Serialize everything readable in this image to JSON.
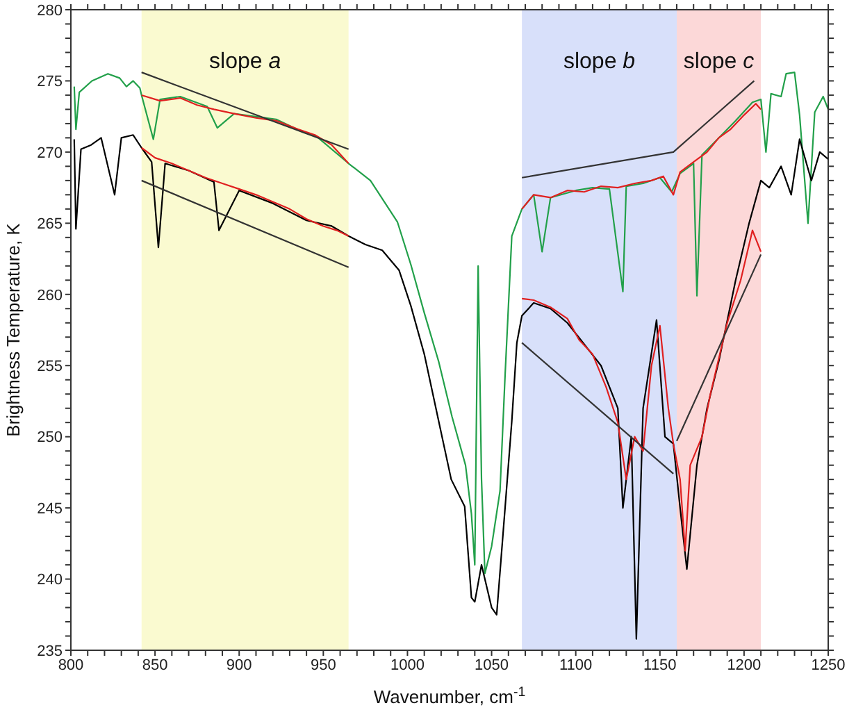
{
  "chart_data": {
    "type": "line",
    "xlabel": "Wavenumber, cm$^{-1}$",
    "ylabel": "Brightness Temperature, K",
    "xlim": [
      800,
      1250
    ],
    "ylim": [
      235,
      280
    ],
    "xticks": [
      800,
      {
        "value": 810,
        "label": null
      },
      {
        "value": 820,
        "label": null
      },
      {
        "value": 830,
        "label": null
      },
      {
        "value": 840,
        "label": null
      },
      850,
      {
        "value": 860,
        "label": null
      },
      {
        "value": 870,
        "label": null
      },
      {
        "value": 880,
        "label": null
      },
      {
        "value": 890,
        "label": null
      },
      900,
      {
        "value": 910,
        "label": null
      },
      {
        "value": 920,
        "label": null
      },
      {
        "value": 930,
        "label": null
      },
      {
        "value": 940,
        "label": null
      },
      950,
      {
        "value": 960,
        "label": null
      },
      {
        "value": 970,
        "label": null
      },
      {
        "value": 980,
        "label": null
      },
      {
        "value": 990,
        "label": null
      },
      1000,
      {
        "value": 1010,
        "label": null
      },
      {
        "value": 1020,
        "label": null
      },
      {
        "value": 1030,
        "label": null
      },
      {
        "value": 1040,
        "label": null
      },
      1050,
      {
        "value": 1060,
        "label": null
      },
      {
        "value": 1070,
        "label": null
      },
      {
        "value": 1080,
        "label": null
      },
      {
        "value": 1090,
        "label": null
      },
      1100,
      {
        "value": 1110,
        "label": null
      },
      {
        "value": 1120,
        "label": null
      },
      {
        "value": 1130,
        "label": null
      },
      {
        "value": 1140,
        "label": null
      },
      1150,
      {
        "value": 1160,
        "label": null
      },
      {
        "value": 1170,
        "label": null
      },
      {
        "value": 1180,
        "label": null
      },
      {
        "value": 1190,
        "label": null
      },
      1200,
      {
        "value": 1210,
        "label": null
      },
      {
        "value": 1220,
        "label": null
      },
      {
        "value": 1230,
        "label": null
      },
      {
        "value": 1240,
        "label": null
      },
      1250
    ],
    "yticks": [
      235,
      {
        "value": 236,
        "label": null
      },
      {
        "value": 237,
        "label": null
      },
      {
        "value": 238,
        "label": null
      },
      {
        "value": 239,
        "label": null
      },
      240,
      {
        "value": 241,
        "label": null
      },
      {
        "value": 242,
        "label": null
      },
      {
        "value": 243,
        "label": null
      },
      {
        "value": 244,
        "label": null
      },
      245,
      {
        "value": 246,
        "label": null
      },
      {
        "value": 247,
        "label": null
      },
      {
        "value": 248,
        "label": null
      },
      {
        "value": 249,
        "label": null
      },
      250,
      {
        "value": 251,
        "label": null
      },
      {
        "value": 252,
        "label": null
      },
      {
        "value": 253,
        "label": null
      },
      {
        "value": 254,
        "label": null
      },
      255,
      {
        "value": 256,
        "label": null
      },
      {
        "value": 257,
        "label": null
      },
      {
        "value": 258,
        "label": null
      },
      {
        "value": 259,
        "label": null
      },
      260,
      {
        "value": 261,
        "label": null
      },
      {
        "value": 262,
        "label": null
      },
      {
        "value": 263,
        "label": null
      },
      {
        "value": 264,
        "label": null
      },
      265,
      {
        "value": 266,
        "label": null
      },
      {
        "value": 267,
        "label": null
      },
      {
        "value": 268,
        "label": null
      },
      {
        "value": 269,
        "label": null
      },
      270,
      {
        "value": 271,
        "label": null
      },
      {
        "value": 272,
        "label": null
      },
      {
        "value": 273,
        "label": null
      },
      {
        "value": 274,
        "label": null
      },
      275,
      {
        "value": 276,
        "label": null
      },
      {
        "value": 277,
        "label": null
      },
      {
        "value": 278,
        "label": null
      },
      {
        "value": 279,
        "label": null
      },
      280
    ],
    "marker": "none",
    "line_style": "solid",
    "bands": [
      {
        "axis": "x",
        "from": 842,
        "to": 965,
        "label": "slope a",
        "color": "#fafad0"
      },
      {
        "axis": "x",
        "from": 1068,
        "to": 1160,
        "label": "slope b",
        "color": "#d8e0fa"
      },
      {
        "axis": "x",
        "from": 1160,
        "to": 1210,
        "label": "slope c",
        "color": "#fcd8d8"
      }
    ],
    "series": [
      {
        "color": "#22a04a",
        "x": [
          802,
          803,
          805,
          812.5,
          822,
          829,
          833,
          837,
          841,
          842,
          849,
          853,
          865,
          881,
          887,
          897,
          922,
          938,
          946,
          965,
          978,
          994,
          1002,
          1010,
          1018.5,
          1026.5,
          1034.5,
          1038,
          1040,
          1042,
          1044,
          1046,
          1050,
          1055,
          1058,
          1062,
          1068,
          1075,
          1080,
          1085,
          1100,
          1110,
          1120,
          1128,
          1130,
          1140,
          1150,
          1157,
          1162,
          1170,
          1172,
          1175,
          1185,
          1195,
          1205,
          1210,
          1213,
          1216,
          1222,
          1225,
          1230,
          1233,
          1238,
          1242,
          1247,
          1250
        ],
        "values": [
          274.6,
          271.6,
          274.2,
          275,
          275.5,
          275.2,
          274.6,
          275,
          274.5,
          274,
          270.9,
          273.7,
          273.9,
          273.2,
          271.7,
          272.7,
          272.3,
          271.4,
          271.1,
          269.2,
          268,
          265.1,
          262.1,
          258.7,
          255.3,
          251.4,
          248,
          244.6,
          241,
          262,
          247,
          240.4,
          242.3,
          246.2,
          254.3,
          264.1,
          266,
          267,
          263,
          266.8,
          267.3,
          267.5,
          267.4,
          260.2,
          267.6,
          267.8,
          268.2,
          267.2,
          268.5,
          269.2,
          259.9,
          269.8,
          271,
          272.2,
          273.5,
          273.7,
          270,
          274.1,
          273.9,
          275.5,
          275.6,
          272.6,
          265,
          272.8,
          273.9,
          273
        ]
      },
      {
        "color": "#000000",
        "x": [
          802,
          803,
          806,
          812,
          818,
          826,
          830,
          837,
          842,
          848,
          852,
          856,
          870,
          885,
          888,
          900,
          920,
          930,
          940,
          955,
          965,
          975,
          985,
          995,
          1002,
          1010,
          1018,
          1026,
          1034,
          1038,
          1040,
          1044,
          1050,
          1053,
          1058,
          1062,
          1065,
          1068,
          1075,
          1085,
          1095,
          1105,
          1115,
          1125,
          1128,
          1133,
          1136,
          1140,
          1148,
          1153,
          1158,
          1162,
          1166,
          1172,
          1178,
          1185,
          1195,
          1203,
          1210,
          1215,
          1222,
          1228,
          1233,
          1240,
          1245,
          1250
        ],
        "values": [
          270.9,
          264.6,
          270.2,
          270.5,
          271,
          267,
          271,
          271.2,
          270.3,
          269.3,
          263.3,
          269.2,
          268.7,
          267.9,
          264.5,
          267.3,
          266.4,
          265.8,
          265.2,
          264.8,
          264.1,
          263.5,
          263.1,
          261.7,
          259.2,
          255.8,
          251.4,
          247,
          245.1,
          238.7,
          238.4,
          241,
          238,
          237.5,
          245,
          251.1,
          256.6,
          258.5,
          259.4,
          259,
          258,
          256.5,
          255,
          252,
          245,
          250,
          235.8,
          252,
          258.2,
          250,
          249.5,
          245,
          240.7,
          248,
          252,
          255.3,
          261,
          265,
          268,
          267.5,
          269,
          267,
          270.9,
          268,
          270,
          269.5
        ]
      },
      {
        "color": "#e02020",
        "x": [
          842,
          853,
          865,
          875,
          885,
          897,
          910,
          922,
          935,
          945,
          955,
          965
        ],
        "values": [
          274,
          273.6,
          273.8,
          273.3,
          273,
          272.7,
          272.4,
          272.2,
          271.6,
          271.2,
          270.5,
          269.2
        ]
      },
      {
        "color": "#e02020",
        "x": [
          1068,
          1075,
          1085,
          1095,
          1105,
          1115,
          1125,
          1135,
          1145,
          1152,
          1158,
          1162,
          1170,
          1178,
          1185,
          1192,
          1200,
          1207,
          1210
        ],
        "values": [
          266,
          267,
          266.8,
          267.3,
          267.2,
          267.6,
          267.5,
          267.8,
          268,
          268.3,
          267,
          268.6,
          269.3,
          270,
          271,
          271.6,
          272.6,
          273.4,
          273
        ]
      },
      {
        "color": "#e02020",
        "x": [
          842,
          850,
          860,
          870,
          880,
          890,
          900,
          910,
          920,
          930,
          940,
          950,
          958,
          965
        ],
        "values": [
          270.3,
          269.6,
          269.2,
          268.7,
          268.2,
          267.8,
          267.4,
          267,
          266.5,
          266,
          265.3,
          264.8,
          264.5,
          264.1
        ]
      },
      {
        "color": "#e02020",
        "x": [
          1068,
          1075,
          1085,
          1095,
          1102,
          1110,
          1118,
          1125,
          1130,
          1135,
          1140,
          1145,
          1150,
          1155,
          1158,
          1162,
          1165,
          1168,
          1175,
          1180,
          1185,
          1190,
          1198,
          1205,
          1210
        ],
        "values": [
          259.7,
          259.6,
          259.1,
          258.3,
          256.8,
          255.8,
          253.5,
          251,
          247,
          250,
          249,
          255,
          257.8,
          252,
          249.5,
          247,
          242,
          248,
          250,
          253,
          255.5,
          258,
          261,
          264.5,
          263
        ]
      },
      {
        "color": "#333333",
        "x": [
          842,
          965
        ],
        "values": [
          275.6,
          270.2
        ]
      },
      {
        "color": "#333333",
        "x": [
          842,
          965
        ],
        "values": [
          268,
          261.9
        ]
      },
      {
        "color": "#333333",
        "x": [
          1068,
          1158,
          1206
        ],
        "values": [
          268.2,
          270,
          275
        ]
      },
      {
        "color": "#333333",
        "x": [
          1068,
          1158
        ],
        "values": [
          256.6,
          247.4
        ]
      },
      {
        "color": "#333333",
        "x": [
          1160,
          1210
        ],
        "values": [
          249.7,
          262.8
        ]
      }
    ]
  }
}
